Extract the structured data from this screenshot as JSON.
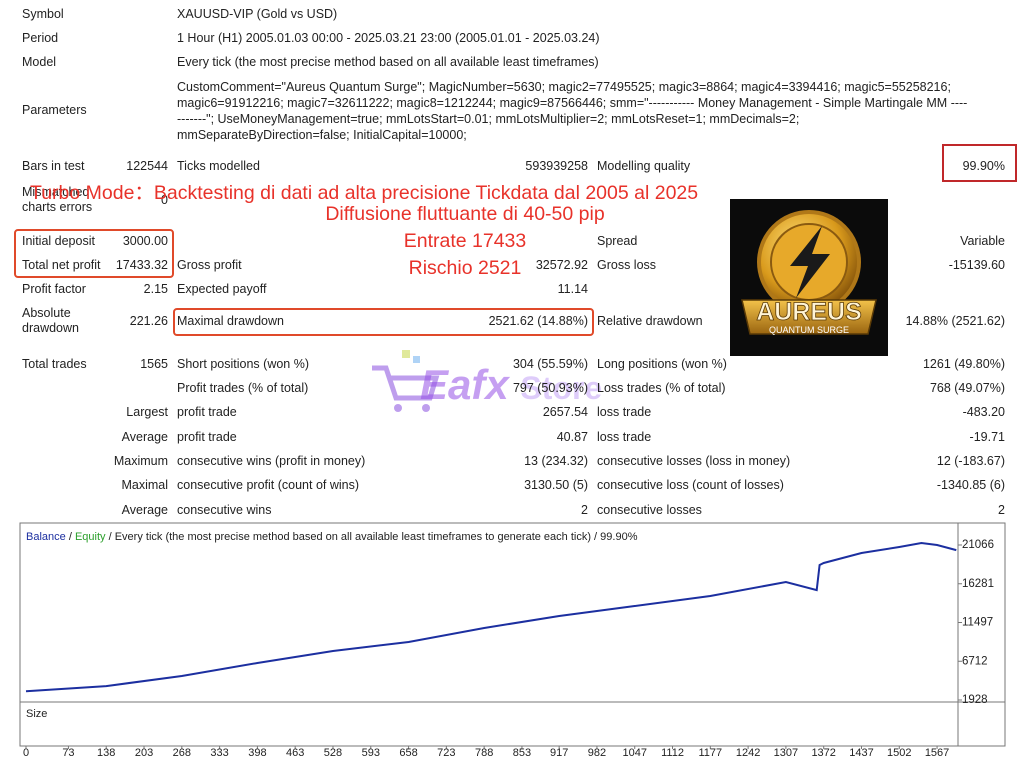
{
  "info": [
    [
      "Symbol",
      "XAUUSD-VIP (Gold vs USD)"
    ],
    [
      "Period",
      "1 Hour (H1) 2005.01.03 00:00 - 2025.03.21 23:00 (2005.01.01 - 2025.03.24)"
    ],
    [
      "Model",
      "Every tick (the most precise method based on all available least timeframes)"
    ]
  ],
  "parameters": {
    "label": "Parameters",
    "lines": [
      "CustomComment=\"Aureus Quantum Surge\"; MagicNumber=5630; magic2=77495525; magic3=8864; magic4=3394416; magic5=55258216;",
      "magic6=91912216; magic7=32611222; magic8=1212244; magic9=87566446; smm=\"----------- Money Management - Simple Martingale MM ----",
      "-------\"; UseMoneyManagement=true; mmLotsStart=0.01; mmLotsMultiplier=2; mmLotsReset=1; mmDecimals=2;",
      "mmSeparateByDirection=false; InitialCapital=10000;"
    ]
  },
  "stats": [
    [
      "Bars in test",
      "122544",
      "Ticks modelled",
      "593939258",
      "Modelling quality",
      "99.90%"
    ],
    [
      "Mismatched charts errors",
      "0",
      null,
      null,
      null,
      null
    ],
    [
      "Initial deposit",
      "3000.00",
      null,
      null,
      "Spread",
      "Variable"
    ],
    [
      "Total net profit",
      "17433.32",
      "Gross profit",
      "32572.92",
      "Gross loss",
      "-15139.60"
    ],
    [
      "Profit factor",
      "2.15",
      "Expected payoff",
      "11.14",
      null,
      null
    ],
    [
      "Absolute drawdown",
      "221.26",
      "Maximal drawdown",
      "2521.62 (14.88%)",
      "Relative drawdown",
      "14.88% (2521.62)"
    ],
    [
      "Total trades",
      "1565",
      "Short positions (won %)",
      "304 (55.59%)",
      "Long positions (won %)",
      "1261 (49.80%)"
    ],
    [
      null,
      null,
      "Profit trades (% of total)",
      "797 (50.93%)",
      "Loss trades (% of total)",
      "768 (49.07%)"
    ],
    [
      null,
      "Largest",
      "profit trade",
      "2657.54",
      "loss trade",
      "-483.20"
    ],
    [
      null,
      "Average",
      "profit trade",
      "40.87",
      "loss trade",
      "-19.71"
    ],
    [
      null,
      "Maximum",
      "consecutive wins (profit in money)",
      "13 (234.32)",
      "consecutive losses (loss in money)",
      "12 (-183.67)"
    ],
    [
      null,
      "Maximal",
      "consecutive profit (count of wins)",
      "3130.50 (5)",
      "consecutive loss (count of losses)",
      "-1340.85 (6)"
    ],
    [
      null,
      "Average",
      "consecutive wins",
      "2",
      "consecutive losses",
      "2"
    ]
  ],
  "overlay": [
    "Turbo Mode：Backtesting di dati ad alta precisione Tickdata dal 2005 al 2025",
    "Diffusione fluttuante di 40-50 pip",
    "Entrate 17433",
    "Rischio 2521"
  ],
  "logo": {
    "name": "AUREUS",
    "tagline": "QUANTUM SURGE"
  },
  "watermark": {
    "brand": "Eafx",
    "suffix": "Store"
  },
  "chart_data": {
    "type": "line",
    "subtitle": "Every tick (the most precise method based on all available least timeframes to generate each tick) / 99.90%",
    "legend_separator": "/",
    "equity_label": "Equity",
    "equity_color": "#2ca02c",
    "size_label": "Size",
    "x": [
      0,
      138,
      268,
      398,
      528,
      658,
      788,
      917,
      1047,
      1177,
      1307,
      1360,
      1365,
      1372,
      1437,
      1502,
      1540,
      1567,
      1600
    ],
    "series": [
      {
        "name": "Balance",
        "color": "#1c2fa0",
        "values": [
          3000,
          3650,
          4890,
          6500,
          7980,
          9090,
          10820,
          12300,
          13530,
          14770,
          16500,
          15500,
          18600,
          18840,
          20080,
          20820,
          21310,
          21066,
          20433
        ]
      }
    ],
    "xlim": [
      0,
      1603
    ],
    "xticks": [
      0,
      73,
      138,
      203,
      268,
      333,
      398,
      463,
      528,
      593,
      658,
      723,
      788,
      853,
      917,
      982,
      1047,
      1112,
      1177,
      1242,
      1307,
      1372,
      1437,
      1502,
      1567
    ],
    "ylim": [
      1928,
      23165
    ],
    "yticks": [
      1928,
      6712,
      11497,
      16281,
      21066
    ],
    "grid": false
  }
}
